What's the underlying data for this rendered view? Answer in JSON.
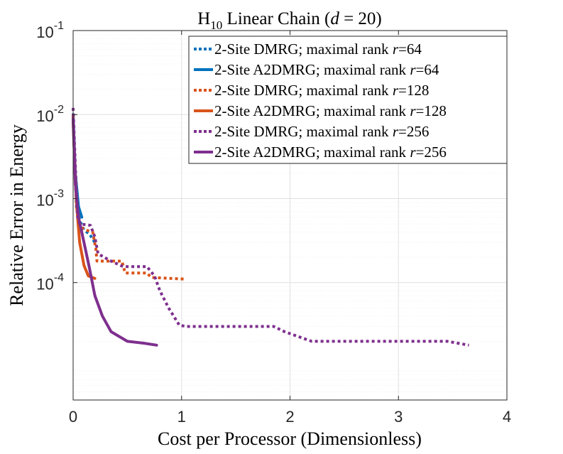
{
  "chart_data": {
    "type": "line",
    "title": {
      "prefix": "H",
      "subscript": "10",
      "middle": " Linear Chain (",
      "var": "d",
      "eq": " = 20)"
    },
    "xlabel": "Cost per Processor (Dimensionless)",
    "ylabel": "Relative Error in Energy",
    "xlim": [
      0,
      4
    ],
    "ylim": [
      4e-06,
      0.1
    ],
    "yscale": "log",
    "grid": true,
    "legend_position": "top-right",
    "xticks": [
      "0",
      "1",
      "2",
      "3",
      "4"
    ],
    "yticks": [
      {
        "base": "10",
        "exp": "-4",
        "value": 0.0001
      },
      {
        "base": "10",
        "exp": "-3",
        "value": 0.001
      },
      {
        "base": "10",
        "exp": "-2",
        "value": 0.01
      },
      {
        "base": "10",
        "exp": "-1",
        "value": 0.1
      }
    ],
    "series": [
      {
        "name": "2-Site DMRG; maximal rank r=64",
        "label_prefix": "2-Site DMRG; maximal rank ",
        "label_var": "r",
        "label_suffix": "=64",
        "color": "#0072BD",
        "dash": "dotted",
        "x": [
          0.0,
          0.03,
          0.06,
          0.1,
          0.15,
          0.2
        ],
        "y": [
          0.01,
          0.0008,
          0.00055,
          0.00042,
          0.00038,
          0.0003
        ]
      },
      {
        "name": "2-Site A2DMRG; maximal rank r=64",
        "label_prefix": "2-Site A2DMRG; maximal rank ",
        "label_var": "r",
        "label_suffix": "=64",
        "color": "#0072BD",
        "dash": "solid",
        "x": [
          0.0,
          0.02,
          0.05,
          0.08
        ],
        "y": [
          0.01,
          0.002,
          0.0008,
          0.0006
        ]
      },
      {
        "name": "2-Site DMRG; maximal rank r=128",
        "label_prefix": "2-Site DMRG; maximal rank ",
        "label_var": "r",
        "label_suffix": "=128",
        "color": "#D95319",
        "dash": "dotted",
        "x": [
          0.0,
          0.02,
          0.05,
          0.08,
          0.12,
          0.18,
          0.21,
          0.22,
          0.3,
          0.45,
          0.48,
          0.68,
          0.72,
          1.03
        ],
        "y": [
          0.01,
          0.0015,
          0.00055,
          0.00045,
          0.00042,
          0.0004,
          0.00025,
          0.00018,
          0.00018,
          0.00018,
          0.00013,
          0.00013,
          0.000115,
          0.00011
        ]
      },
      {
        "name": "2-Site A2DMRG; maximal rank r=128",
        "label_prefix": "2-Site A2DMRG; maximal rank ",
        "label_var": "r",
        "label_suffix": "=128",
        "color": "#D95319",
        "dash": "solid",
        "x": [
          0.0,
          0.03,
          0.06,
          0.1,
          0.14,
          0.2
        ],
        "y": [
          0.008,
          0.0009,
          0.0003,
          0.00016,
          0.00012,
          0.000112
        ]
      },
      {
        "name": "2-Site DMRG; maximal rank r=256",
        "label_prefix": "2-Site DMRG; maximal rank ",
        "label_var": "r",
        "label_suffix": "=256",
        "color": "#7E2F8E",
        "dash": "dotted",
        "x": [
          0.0,
          0.02,
          0.04,
          0.06,
          0.16,
          0.2,
          0.23,
          0.35,
          0.46,
          0.5,
          0.68,
          0.75,
          0.8,
          0.88,
          0.98,
          1.05,
          1.85,
          1.95,
          2.2,
          2.3,
          2.8,
          3.45,
          3.65
        ],
        "y": [
          0.012,
          0.0025,
          0.00062,
          0.0005,
          0.00048,
          0.00035,
          0.00022,
          0.00018,
          0.000155,
          0.000155,
          0.000155,
          0.00012,
          8e-05,
          5e-05,
          3.1e-05,
          3e-05,
          3e-05,
          2.6e-05,
          2e-05,
          2e-05,
          2e-05,
          2e-05,
          1.8e-05
        ]
      },
      {
        "name": "2-Site A2DMRG; maximal rank r=256",
        "label_prefix": "2-Site A2DMRG; maximal rank ",
        "label_var": "r",
        "label_suffix": "=256",
        "color": "#7E2F8E",
        "dash": "solid",
        "x": [
          0.0,
          0.02,
          0.05,
          0.1,
          0.15,
          0.2,
          0.27,
          0.35,
          0.5,
          0.65,
          0.77
        ],
        "y": [
          0.009,
          0.0015,
          0.0006,
          0.0003,
          0.00015,
          7e-05,
          4e-05,
          2.6e-05,
          2e-05,
          1.9e-05,
          1.8e-05
        ]
      }
    ]
  }
}
